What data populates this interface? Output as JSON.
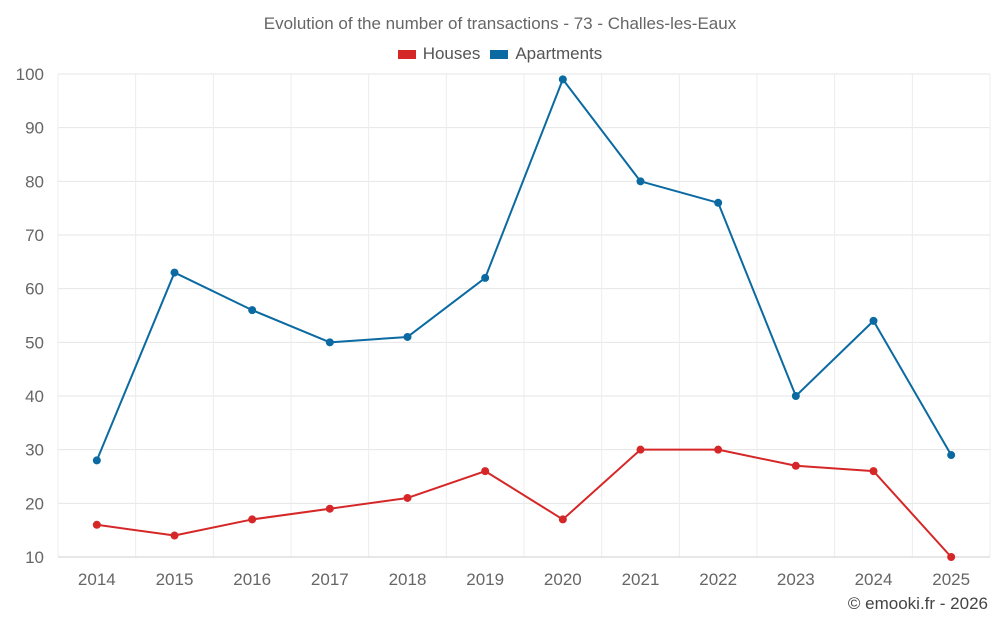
{
  "chart_data": {
    "type": "line",
    "title": "Evolution of the number of transactions - 73 - Challes-les-Eaux",
    "categories": [
      "2014",
      "2015",
      "2016",
      "2017",
      "2018",
      "2019",
      "2020",
      "2021",
      "2022",
      "2023",
      "2024",
      "2025"
    ],
    "series": [
      {
        "name": "Houses",
        "color": "#d62728",
        "values": [
          16,
          14,
          17,
          19,
          21,
          26,
          17,
          30,
          30,
          27,
          26,
          10
        ]
      },
      {
        "name": "Apartments",
        "color": "#0a6aa1",
        "values": [
          28,
          63,
          56,
          50,
          51,
          62,
          99,
          80,
          76,
          40,
          54,
          29
        ]
      }
    ],
    "ylim": [
      10,
      100
    ],
    "yticks": [
      10,
      20,
      30,
      40,
      50,
      60,
      70,
      80,
      90,
      100
    ],
    "grid": true,
    "legend_position": "top-center"
  },
  "footer": {
    "credit": "© emooki.fr - 2026"
  }
}
